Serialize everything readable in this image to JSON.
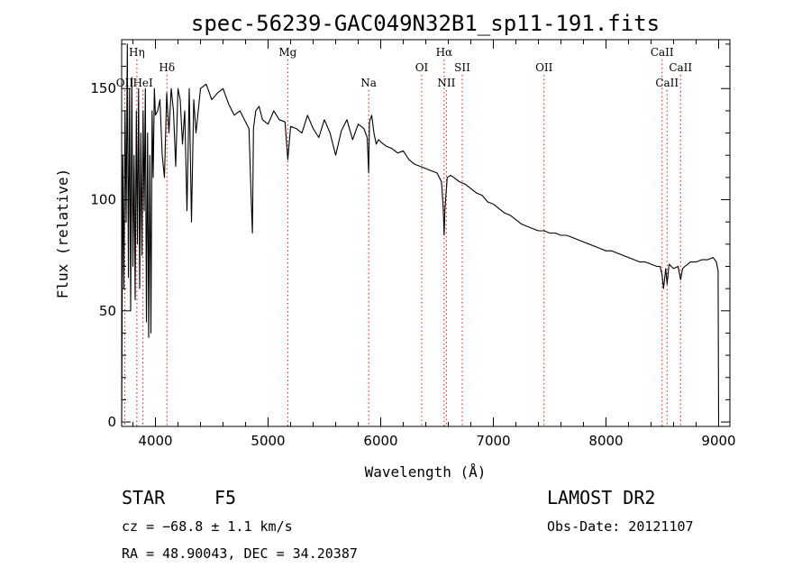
{
  "chart_data": {
    "type": "line",
    "title": "spec-56239-GAC049N32B1_sp11-191.fits",
    "xlabel": "Wavelength (Å)",
    "ylabel": "Flux (relative)",
    "xlim": [
      3700,
      9100
    ],
    "ylim": [
      -2,
      172
    ],
    "xticks": [
      4000,
      5000,
      6000,
      7000,
      8000,
      9000
    ],
    "yticks": [
      0,
      50,
      100,
      150
    ],
    "series": [
      {
        "x": [
          3700,
          3710,
          3720,
          3730,
          3740,
          3750,
          3760,
          3770,
          3780,
          3790,
          3800,
          3810,
          3820,
          3830,
          3840,
          3850,
          3860,
          3870,
          3880,
          3890,
          3900,
          3910,
          3920,
          3930,
          3940,
          3950,
          3960,
          3970,
          3980,
          3990,
          4000,
          4020,
          4040,
          4060,
          4080,
          4100,
          4120,
          4140,
          4160,
          4180,
          4200,
          4220,
          4240,
          4260,
          4280,
          4300,
          4320,
          4340,
          4360,
          4380,
          4400,
          4450,
          4500,
          4550,
          4600,
          4650,
          4700,
          4750,
          4800,
          4830,
          4850,
          4861,
          4870,
          4890,
          4920,
          4950,
          5000,
          5050,
          5100,
          5150,
          5175,
          5200,
          5250,
          5300,
          5350,
          5400,
          5450,
          5500,
          5550,
          5600,
          5650,
          5700,
          5750,
          5800,
          5850,
          5880,
          5893,
          5900,
          5920,
          5940,
          5960,
          5980,
          6000,
          6050,
          6100,
          6150,
          6200,
          6250,
          6300,
          6350,
          6400,
          6450,
          6500,
          6540,
          6555,
          6563,
          6570,
          6590,
          6620,
          6650,
          6700,
          6750,
          6800,
          6850,
          6900,
          6950,
          7000,
          7050,
          7100,
          7150,
          7200,
          7250,
          7300,
          7350,
          7400,
          7450,
          7500,
          7550,
          7600,
          7650,
          7700,
          7750,
          7800,
          7850,
          7900,
          7950,
          8000,
          8050,
          8100,
          8150,
          8200,
          8250,
          8300,
          8350,
          8400,
          8450,
          8480,
          8498,
          8510,
          8530,
          8542,
          8560,
          8580,
          8600,
          8640,
          8662,
          8680,
          8700,
          8750,
          8800,
          8850,
          8900,
          8950,
          8980,
          8995,
          9000,
          9005
        ],
        "values": [
          0,
          120,
          60,
          140,
          90,
          170,
          65,
          150,
          50,
          155,
          70,
          120,
          55,
          140,
          80,
          150,
          60,
          130,
          75,
          140,
          95,
          150,
          45,
          130,
          38,
          120,
          40,
          140,
          110,
          150,
          138,
          140,
          145,
          120,
          110,
          148,
          130,
          150,
          140,
          115,
          150,
          145,
          125,
          140,
          95,
          150,
          90,
          145,
          130,
          140,
          150,
          152,
          145,
          148,
          150,
          143,
          138,
          140,
          135,
          132,
          100,
          85,
          132,
          140,
          142,
          136,
          134,
          140,
          136,
          135,
          118,
          133,
          132,
          130,
          138,
          132,
          128,
          136,
          130,
          120,
          131,
          136,
          127,
          134,
          132,
          128,
          112,
          135,
          138,
          130,
          125,
          127,
          126,
          124,
          123,
          121,
          122,
          118,
          116,
          115,
          114,
          113,
          112,
          108,
          96,
          84,
          96,
          110,
          111,
          110,
          108,
          107,
          105,
          103,
          102,
          99,
          98,
          96,
          94,
          93,
          91,
          89,
          88,
          87,
          86,
          86,
          85,
          85,
          84,
          84,
          83,
          82,
          81,
          80,
          79,
          78,
          77,
          77,
          76,
          75,
          74,
          73,
          72,
          72,
          71,
          70,
          70,
          66,
          60,
          69,
          62,
          71,
          70,
          69,
          70,
          64,
          69,
          70,
          72,
          72,
          73,
          73,
          74,
          72,
          68,
          0,
          0
        ]
      }
    ],
    "lines": [
      {
        "label": "OII",
        "wave": 3727,
        "row": 3
      },
      {
        "label": "Hη",
        "wave": 3835,
        "row": 1
      },
      {
        "label": "HeI",
        "wave": 3889,
        "row": 3
      },
      {
        "label": "Hδ",
        "wave": 4102,
        "row": 2
      },
      {
        "label": "Mg",
        "wave": 5175,
        "row": 1
      },
      {
        "label": "Na",
        "wave": 5893,
        "row": 3
      },
      {
        "label": "OI",
        "wave": 6364,
        "row": 2
      },
      {
        "label": "Hα",
        "wave": 6563,
        "row": 1
      },
      {
        "label": "NII",
        "wave": 6583,
        "row": 3
      },
      {
        "label": "SII",
        "wave": 6724,
        "row": 2
      },
      {
        "label": "OII",
        "wave": 7450,
        "row": 2
      },
      {
        "label": "CaII",
        "wave": 8498,
        "row": 1
      },
      {
        "label": "CaII",
        "wave": 8542,
        "row": 3
      },
      {
        "label": "CaII",
        "wave": 8662,
        "row": 2
      }
    ]
  },
  "info": {
    "object": "STAR",
    "subclass": "F5",
    "survey": "LAMOST DR2",
    "cz": "cz = −68.8 ± 1.1 km/s",
    "obs_date": "Obs-Date: 20121107",
    "coords": "RA =  48.90043, DEC =  34.20387"
  }
}
